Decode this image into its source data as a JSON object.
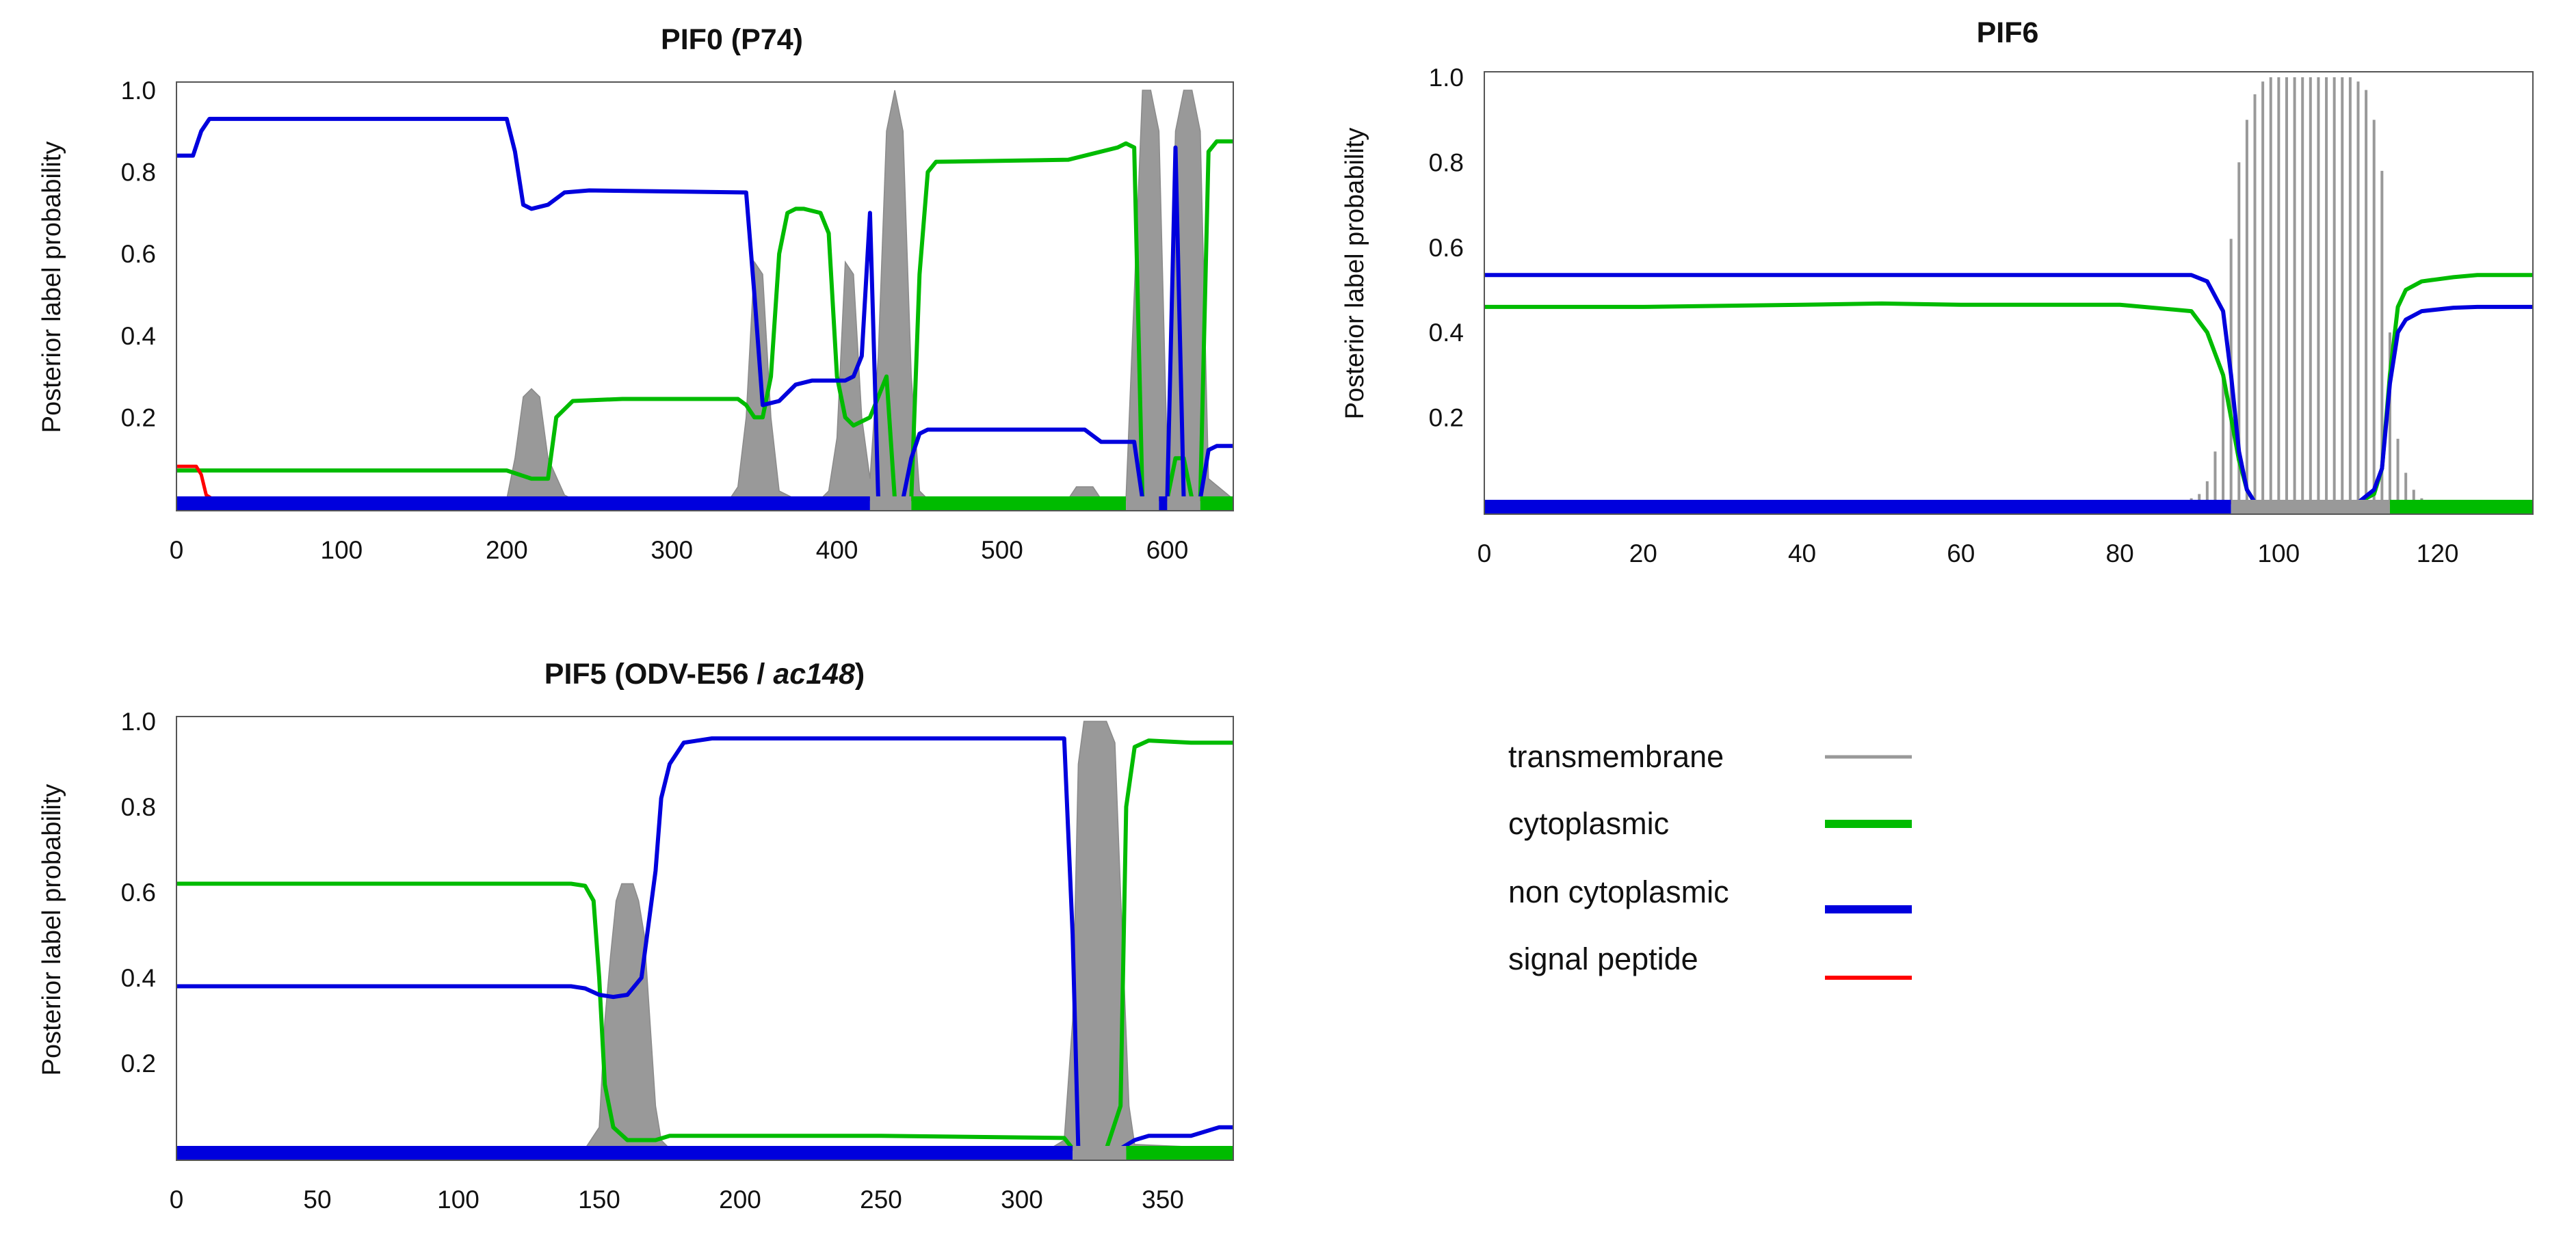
{
  "chart_data": [
    {
      "type": "line",
      "title": "PIF0 (P74)",
      "ylabel": "Posterior label probability",
      "xlabel": "",
      "xlim": [
        0,
        640
      ],
      "ylim": [
        -0.03,
        1.0
      ],
      "xticks": [
        "0",
        "100",
        "200",
        "300",
        "400",
        "500",
        "600"
      ],
      "yticks": [
        "0.2",
        "0.4",
        "0.6",
        "0.8",
        "1.0"
      ],
      "series": [
        {
          "name": "transmembrane",
          "style": "area",
          "x": [
            0,
            200,
            205,
            210,
            215,
            220,
            225,
            235,
            240,
            335,
            340,
            345,
            350,
            355,
            360,
            365,
            375,
            390,
            395,
            400,
            405,
            410,
            415,
            420,
            425,
            430,
            435,
            440,
            445,
            450,
            455,
            540,
            545,
            550,
            555,
            560,
            575,
            580,
            585,
            590,
            595,
            600,
            605,
            610,
            615,
            620,
            625,
            640
          ],
          "values": [
            0,
            0,
            0.1,
            0.25,
            0.27,
            0.25,
            0.1,
            0.01,
            0,
            0,
            0.03,
            0.2,
            0.58,
            0.55,
            0.2,
            0.02,
            0,
            0,
            0.02,
            0.15,
            0.58,
            0.55,
            0.2,
            0.05,
            0.35,
            0.9,
            1.0,
            0.9,
            0.3,
            0.02,
            0,
            0,
            0.03,
            0.03,
            0.03,
            0,
            0,
            0.5,
            1.0,
            1.0,
            0.9,
            0.1,
            0.9,
            1.0,
            1.0,
            0.9,
            0.05,
            0
          ]
        },
        {
          "name": "cytoplasmic",
          "style": "line",
          "x": [
            0,
            200,
            215,
            225,
            230,
            240,
            270,
            340,
            345,
            350,
            355,
            360,
            365,
            370,
            375,
            380,
            390,
            395,
            400,
            405,
            410,
            420,
            430,
            435,
            440,
            445,
            450,
            455,
            460,
            540,
            560,
            570,
            575,
            580,
            585,
            590,
            595,
            600,
            605,
            610,
            615,
            620,
            625,
            630,
            640
          ],
          "values": [
            0.07,
            0.07,
            0.05,
            0.05,
            0.2,
            0.24,
            0.245,
            0.245,
            0.23,
            0.2,
            0.2,
            0.3,
            0.6,
            0.7,
            0.71,
            0.71,
            0.7,
            0.65,
            0.3,
            0.2,
            0.18,
            0.2,
            0.3,
            0.0,
            0.0,
            0.0,
            0.55,
            0.8,
            0.825,
            0.83,
            0.85,
            0.86,
            0.87,
            0.86,
            0.0,
            0.0,
            0.0,
            0.0,
            0.1,
            0.1,
            0.0,
            0.0,
            0.85,
            0.875,
            0.875
          ]
        },
        {
          "name": "non cytoplasmic",
          "style": "line",
          "x": [
            0,
            10,
            15,
            20,
            200,
            205,
            210,
            215,
            225,
            235,
            250,
            345,
            350,
            355,
            365,
            375,
            385,
            395,
            405,
            410,
            415,
            420,
            425,
            430,
            435,
            440,
            445,
            450,
            455,
            460,
            550,
            560,
            565,
            570,
            575,
            580,
            585,
            590,
            595,
            600,
            605,
            610,
            615,
            620,
            625,
            630,
            640
          ],
          "values": [
            0.84,
            0.84,
            0.9,
            0.93,
            0.93,
            0.85,
            0.72,
            0.71,
            0.72,
            0.75,
            0.755,
            0.75,
            0.5,
            0.23,
            0.24,
            0.28,
            0.29,
            0.29,
            0.29,
            0.3,
            0.35,
            0.7,
            0.0,
            0.0,
            0.0,
            0.0,
            0.1,
            0.16,
            0.17,
            0.17,
            0.17,
            0.14,
            0.14,
            0.14,
            0.14,
            0.14,
            0.0,
            0.0,
            0.0,
            0.0,
            0.86,
            0.0,
            0.0,
            0.0,
            0.12,
            0.13,
            0.13
          ]
        },
        {
          "name": "signal peptide",
          "style": "line",
          "x": [
            0,
            12,
            15,
            18,
            22,
            640
          ],
          "values": [
            0.08,
            0.08,
            0.06,
            0.01,
            0.0,
            0.0
          ]
        },
        {
          "name": "topology",
          "style": "bar",
          "segments": [
            [
              0,
              420,
              "non cytoplasmic"
            ],
            [
              420,
              445,
              "transmembrane"
            ],
            [
              445,
              575,
              "cytoplasmic"
            ],
            [
              575,
              595,
              "transmembrane"
            ],
            [
              595,
              600,
              "non cytoplasmic"
            ],
            [
              600,
              620,
              "transmembrane"
            ],
            [
              620,
              640,
              "cytoplasmic"
            ]
          ]
        }
      ]
    },
    {
      "type": "line",
      "title": "PIF6",
      "ylabel": "Posterior label probability",
      "xlabel": "",
      "xlim": [
        0,
        132
      ],
      "ylim": [
        -0.03,
        1.0
      ],
      "xticks": [
        "0",
        "20",
        "40",
        "60",
        "80",
        "100",
        "120"
      ],
      "yticks": [
        "0.2",
        "0.4",
        "0.6",
        "0.8",
        "1.0"
      ],
      "series": [
        {
          "name": "transmembrane",
          "style": "impulse",
          "x": [
            89,
            90,
            91,
            92,
            93,
            94,
            95,
            96,
            97,
            98,
            99,
            100,
            101,
            102,
            103,
            104,
            105,
            106,
            107,
            108,
            109,
            110,
            111,
            112,
            113,
            114,
            115,
            116,
            117,
            118
          ],
          "values": [
            0.01,
            0.02,
            0.05,
            0.12,
            0.3,
            0.62,
            0.8,
            0.9,
            0.96,
            0.99,
            1.0,
            1.0,
            1.0,
            1.0,
            1.0,
            1.0,
            1.0,
            1.0,
            1.0,
            1.0,
            1.0,
            0.99,
            0.97,
            0.9,
            0.78,
            0.4,
            0.15,
            0.07,
            0.03,
            0.01
          ]
        },
        {
          "name": "cytoplasmic",
          "style": "line",
          "x": [
            0,
            20,
            40,
            50,
            60,
            80,
            89,
            91,
            93,
            94,
            95,
            96,
            97,
            98,
            110,
            112,
            113,
            114,
            115,
            116,
            118,
            122,
            125,
            132
          ],
          "values": [
            0.46,
            0.46,
            0.465,
            0.468,
            0.465,
            0.465,
            0.45,
            0.4,
            0.3,
            0.2,
            0.1,
            0.03,
            0.0,
            0.0,
            0.0,
            0.02,
            0.08,
            0.3,
            0.46,
            0.5,
            0.52,
            0.53,
            0.535,
            0.535
          ]
        },
        {
          "name": "non cytoplasmic",
          "style": "line",
          "x": [
            0,
            20,
            40,
            60,
            80,
            89,
            91,
            93,
            94,
            95,
            96,
            97,
            98,
            110,
            112,
            113,
            114,
            115,
            116,
            118,
            122,
            125,
            132
          ],
          "values": [
            0.535,
            0.535,
            0.535,
            0.535,
            0.535,
            0.535,
            0.52,
            0.45,
            0.3,
            0.12,
            0.03,
            0.0,
            0.0,
            0.0,
            0.03,
            0.08,
            0.28,
            0.4,
            0.43,
            0.45,
            0.458,
            0.46,
            0.46
          ]
        },
        {
          "name": "signal peptide",
          "style": "line",
          "x": [
            0,
            132
          ],
          "values": [
            0.0,
            0.0
          ]
        },
        {
          "name": "topology",
          "style": "bar",
          "segments": [
            [
              0,
              94,
              "non cytoplasmic"
            ],
            [
              94,
              114,
              "transmembrane"
            ],
            [
              114,
              132,
              "cytoplasmic"
            ]
          ]
        }
      ]
    },
    {
      "type": "line",
      "title_main": "PIF5 (ODV-E56 / ",
      "title_italic": "ac148",
      "title_end": ")",
      "ylabel": "Posterior label probability",
      "xlabel": "",
      "xlim": [
        0,
        375
      ],
      "ylim": [
        -0.03,
        1.0
      ],
      "xticks": [
        "0",
        "50",
        "100",
        "150",
        "200",
        "250",
        "300",
        "350"
      ],
      "yticks": [
        "0.2",
        "0.4",
        "0.6",
        "0.8",
        "1.0"
      ],
      "series": [
        {
          "name": "transmembrane",
          "style": "area",
          "x": [
            0,
            145,
            150,
            152,
            154,
            156,
            158,
            160,
            162,
            164,
            166,
            168,
            170,
            172,
            175,
            180,
            310,
            315,
            318,
            320,
            322,
            325,
            330,
            333,
            335,
            338,
            340,
            375
          ],
          "values": [
            0,
            0,
            0.05,
            0.3,
            0.45,
            0.58,
            0.62,
            0.62,
            0.62,
            0.58,
            0.5,
            0.3,
            0.1,
            0.02,
            0,
            0,
            0,
            0.02,
            0.3,
            0.9,
            1.0,
            1.0,
            1.0,
            0.95,
            0.6,
            0.1,
            0.01,
            0
          ]
        },
        {
          "name": "cytoplasmic",
          "style": "line",
          "x": [
            0,
            140,
            145,
            148,
            150,
            152,
            155,
            160,
            170,
            175,
            180,
            200,
            250,
            315,
            318,
            320,
            330,
            335,
            337,
            340,
            345,
            360,
            375
          ],
          "values": [
            0.62,
            0.62,
            0.615,
            0.58,
            0.4,
            0.15,
            0.05,
            0.02,
            0.02,
            0.03,
            0.03,
            0.03,
            0.03,
            0.025,
            0.0,
            0.0,
            0.0,
            0.1,
            0.8,
            0.94,
            0.955,
            0.95,
            0.95
          ]
        },
        {
          "name": "non cytoplasmic",
          "style": "line",
          "x": [
            0,
            140,
            145,
            150,
            155,
            160,
            165,
            170,
            172,
            175,
            180,
            190,
            200,
            250,
            300,
            315,
            318,
            320,
            330,
            335,
            340,
            345,
            360,
            365,
            370,
            375
          ],
          "values": [
            0.38,
            0.38,
            0.375,
            0.36,
            0.355,
            0.36,
            0.4,
            0.65,
            0.82,
            0.9,
            0.95,
            0.96,
            0.96,
            0.96,
            0.96,
            0.96,
            0.5,
            0.0,
            0.0,
            0.0,
            0.02,
            0.03,
            0.03,
            0.04,
            0.05,
            0.05
          ]
        },
        {
          "name": "signal peptide",
          "style": "line",
          "x": [
            0,
            375
          ],
          "values": [
            0.0,
            0.0
          ]
        },
        {
          "name": "topology",
          "style": "bar",
          "segments": [
            [
              0,
              318,
              "non cytoplasmic"
            ],
            [
              318,
              337,
              "transmembrane"
            ],
            [
              337,
              375,
              "cytoplasmic"
            ]
          ]
        }
      ]
    }
  ],
  "legend": {
    "items": [
      {
        "label": "transmembrane",
        "color": "#999999"
      },
      {
        "label": "cytoplasmic",
        "color": "#00bb00"
      },
      {
        "label": "non cytoplasmic",
        "color": "#0000dd"
      },
      {
        "label": "signal peptide",
        "color": "#ff0000"
      }
    ]
  },
  "colors": {
    "transmembrane": "#999999",
    "cytoplasmic": "#00bb00",
    "non cytoplasmic": "#0000dd",
    "signal peptide": "#ff0000"
  }
}
